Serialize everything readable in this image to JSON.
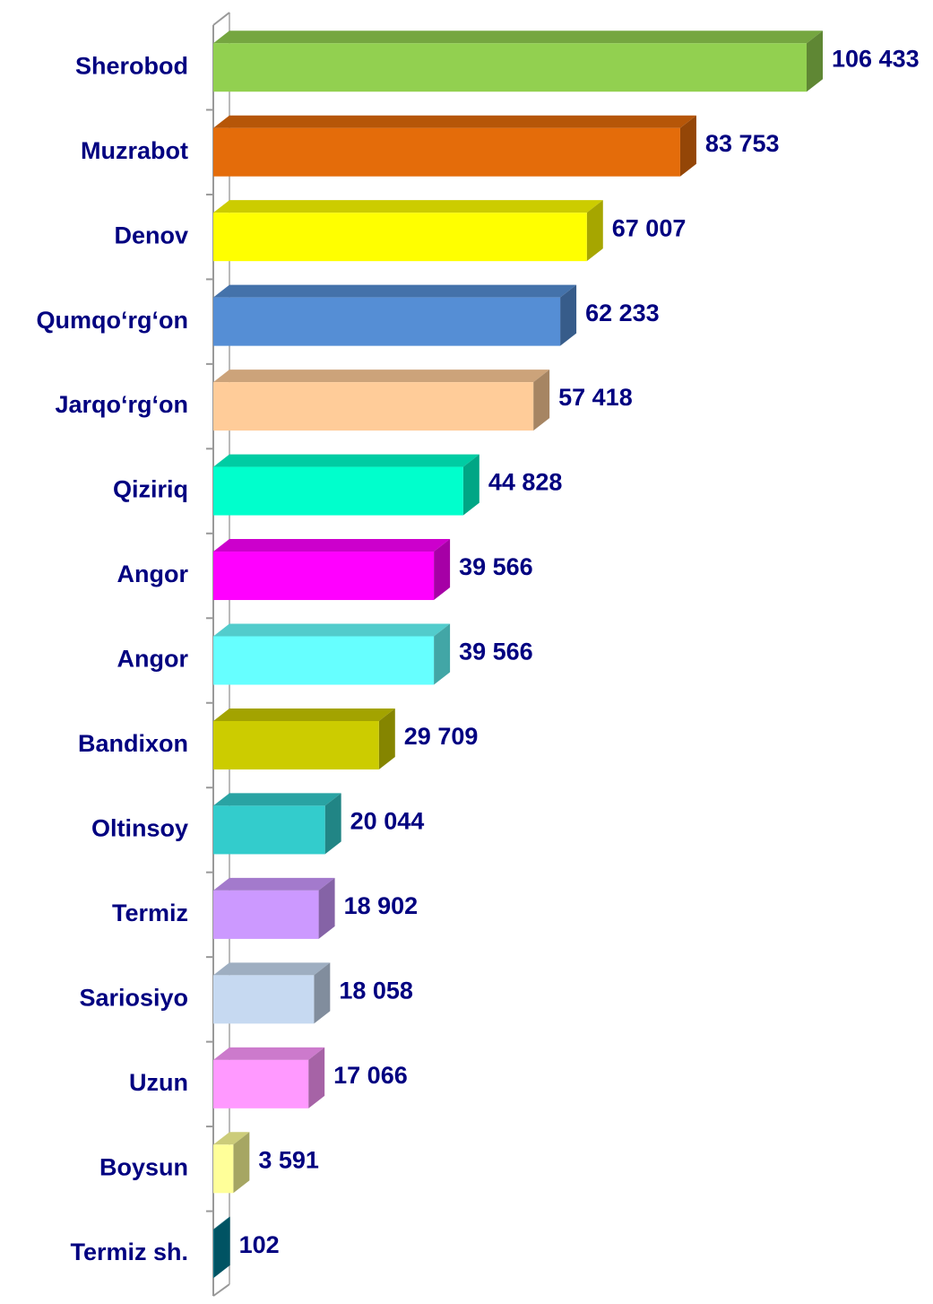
{
  "chart_data": {
    "type": "bar",
    "orientation": "horizontal",
    "categories": [
      "Sherobod",
      "Muzrabot",
      "Denov",
      "Qumqo‘rg‘on",
      "Jarqo‘rg‘on",
      "Qiziriq",
      "Angor",
      "Angor",
      "Bandixon",
      "Oltinsoy",
      "Termiz",
      "Sariosiyo",
      "Uzun",
      "Boysun",
      "Termiz sh."
    ],
    "values": [
      106433,
      83753,
      67007,
      62233,
      57418,
      44828,
      39566,
      39566,
      29709,
      20044,
      18902,
      18058,
      17066,
      3591,
      102
    ],
    "value_labels": [
      "106 433",
      "83 753",
      "67 007",
      "62 233",
      "57 418",
      "44 828",
      "39 566",
      "39 566",
      "29 709",
      "20 044",
      "18 902",
      "18 058",
      "17 066",
      "3 591",
      "102"
    ],
    "colors": [
      "#92d050",
      "#e46c0a",
      "#ffff00",
      "#558ed5",
      "#ffcc99",
      "#00ffcc",
      "#ff00ff",
      "#66ffff",
      "#cccc00",
      "#33cccc",
      "#cc99ff",
      "#c6d9f1",
      "#ff99ff",
      "#ffff99",
      "#008099"
    ]
  }
}
